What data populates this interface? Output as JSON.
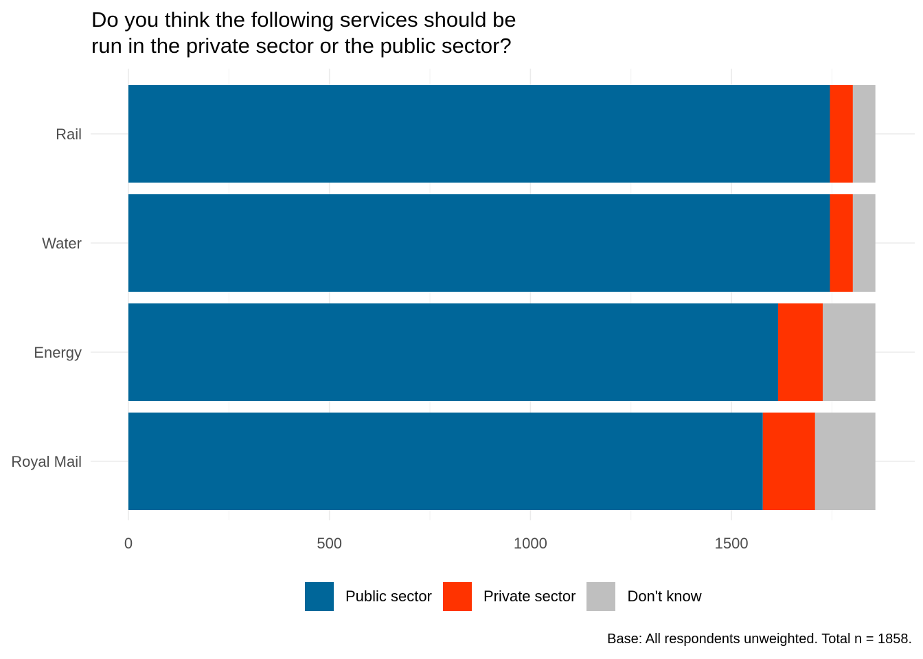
{
  "chart_data": {
    "type": "bar",
    "orientation": "horizontal",
    "stacked": true,
    "title": [
      "Do you think the following services should be",
      "run in the private sector or the public sector?"
    ],
    "caption": "Base: All respondents unweighted. Total n = 1858.",
    "categories": [
      "Rail",
      "Water",
      "Energy",
      "Royal Mail"
    ],
    "series": [
      {
        "name": "Public sector",
        "color": "#006699",
        "values": [
          1745,
          1745,
          1616,
          1578
        ]
      },
      {
        "name": "Private sector",
        "color": "#ff3300",
        "values": [
          57,
          57,
          111,
          130
        ]
      },
      {
        "name": "Don't know",
        "color": "#bfbfbf",
        "values": [
          56,
          56,
          131,
          150
        ]
      }
    ],
    "xlim": [
      0,
      1858
    ],
    "xticks": [
      0,
      500,
      1000,
      1500
    ],
    "xtick_labels": [
      "0",
      "500",
      "1000",
      "1500"
    ],
    "grid": true,
    "legend_position": "bottom"
  }
}
